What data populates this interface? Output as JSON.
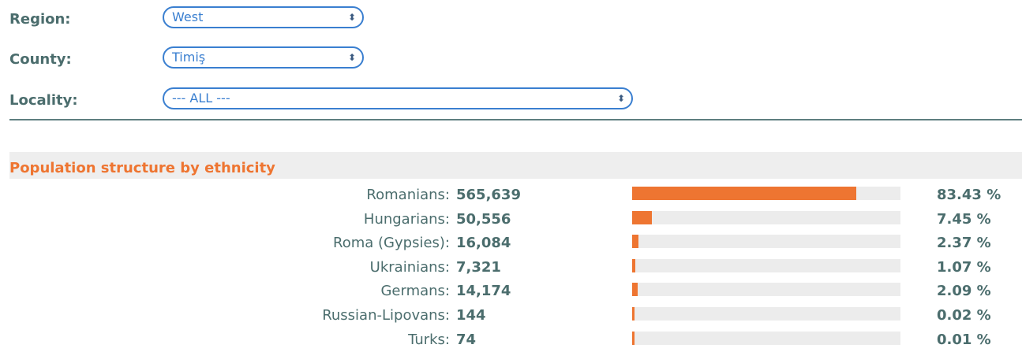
{
  "filters": {
    "region": {
      "label": "Region:",
      "value": "West"
    },
    "county": {
      "label": "County:",
      "value": "Timiş"
    },
    "locality": {
      "label": "Locality:",
      "value": "--- ALL ---"
    }
  },
  "section": {
    "title": "Population structure by ethnicity"
  },
  "chart_data": {
    "type": "bar",
    "categories": [
      "Romanians",
      "Hungarians",
      "Roma (Gypsies)",
      "Ukrainians",
      "Germans",
      "Russian-Lipovans",
      "Turks"
    ],
    "values": [
      565639,
      50556,
      16084,
      7321,
      14174,
      144,
      74
    ],
    "percentages": [
      83.43,
      7.45,
      2.37,
      1.07,
      2.09,
      0.02,
      0.01
    ],
    "rows": [
      {
        "name": "Romanians:",
        "count": "565,639",
        "pct": "83.43 %",
        "share": 0.8343
      },
      {
        "name": "Hungarians:",
        "count": "50,556",
        "pct": "7.45 %",
        "share": 0.0745
      },
      {
        "name": "Roma (Gypsies):",
        "count": "16,084",
        "pct": "2.37 %",
        "share": 0.0237
      },
      {
        "name": "Ukrainians:",
        "count": "7,321",
        "pct": "1.07 %",
        "share": 0.0107
      },
      {
        "name": "Germans:",
        "count": "14,174",
        "pct": "2.09 %",
        "share": 0.0209
      },
      {
        "name": "Russian-Lipovans:",
        "count": "144",
        "pct": "0.02 %",
        "share": 0.0002
      },
      {
        "name": "Turks:",
        "count": "74",
        "pct": "0.01 %",
        "share": 0.0001
      }
    ]
  },
  "colors": {
    "accent": "#ee7531",
    "link": "#3a7fd0",
    "text": "#4b6d6d",
    "track": "#ececec"
  }
}
